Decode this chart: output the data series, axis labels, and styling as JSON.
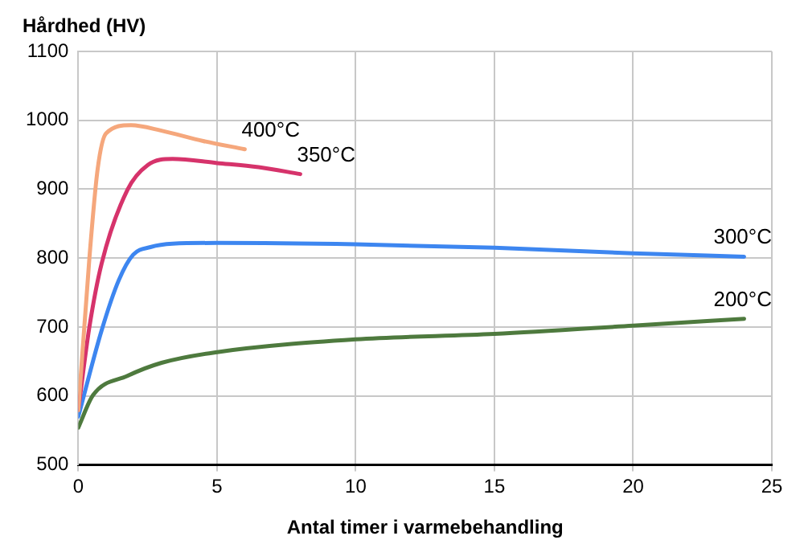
{
  "chart_data": {
    "type": "line",
    "ylabel": "Hårdhed (HV)",
    "xlabel": "Antal timer i varmebehandling",
    "xlim": [
      0,
      25
    ],
    "xticks": [
      0,
      5,
      10,
      15,
      20,
      25
    ],
    "ylim": [
      500,
      1100
    ],
    "yticks": [
      500,
      600,
      700,
      800,
      900,
      1000,
      1100
    ],
    "grid": true,
    "legend": false,
    "marker": "none",
    "line_style": "solid",
    "series": [
      {
        "name": "400°C",
        "color": "#f5a77c",
        "x": [
          0,
          0.4,
          0.7,
          1,
          1.9,
          3,
          4.5,
          6
        ],
        "values": [
          579,
          800,
          930,
          981,
          993,
          985,
          970,
          958
        ]
      },
      {
        "name": "350°C",
        "color": "#d6336b",
        "x": [
          0,
          0.4,
          0.84,
          1.77,
          2.5,
          3.4,
          5,
          6.5,
          8
        ],
        "values": [
          580,
          700,
          792,
          899,
          935,
          944,
          938,
          932,
          922
        ]
      },
      {
        "name": "300°C",
        "color": "#3d86f0",
        "x": [
          0,
          0.84,
          1.46,
          1.98,
          2.6,
          3.4,
          5,
          10,
          15,
          20,
          24
        ],
        "values": [
          570,
          695,
          768,
          805,
          816,
          821,
          822,
          820,
          815,
          807,
          802
        ]
      },
      {
        "name": "200°C",
        "color": "#4e7a3e",
        "x": [
          0,
          0.53,
          1.77,
          3,
          4.9,
          10,
          15,
          20,
          24
        ],
        "values": [
          554,
          601,
          629,
          648,
          663,
          682,
          690,
          702,
          712
        ]
      }
    ]
  }
}
